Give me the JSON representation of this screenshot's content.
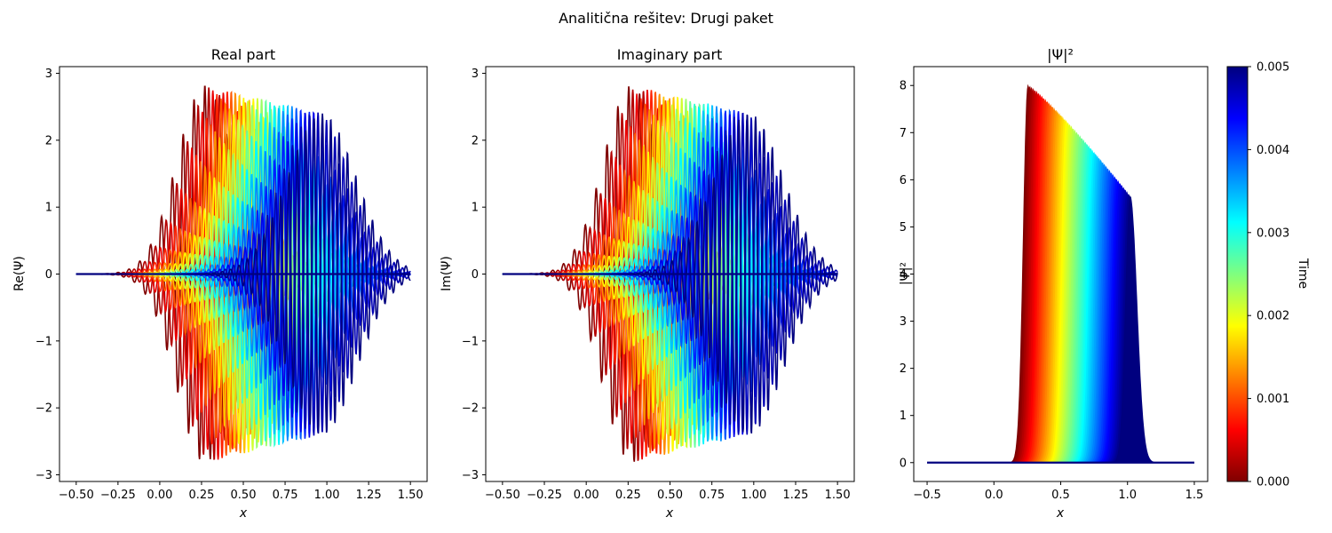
{
  "suptitle": "Analitična rešitev: Drugi paket",
  "colors": {
    "jet_stops": [
      "#00007f",
      "#0000ff",
      "#007fff",
      "#00ffff",
      "#7fff7f",
      "#ffff00",
      "#ff7f00",
      "#ff0000",
      "#7f0000"
    ],
    "axis": "#000000",
    "background": "#ffffff"
  },
  "chart_data": [
    {
      "type": "line",
      "title": "Real part",
      "xlabel": "x",
      "ylabel": "Re(Ψ)",
      "xlim": [
        -0.6,
        1.6
      ],
      "ylim": [
        -3.1,
        3.1
      ],
      "xticks": [
        "−0.50",
        "−0.25",
        "0.00",
        "0.25",
        "0.50",
        "0.75",
        "1.00",
        "1.25",
        "1.50"
      ],
      "yticks": [
        "−3",
        "−2",
        "−1",
        "0",
        "1",
        "2",
        "3"
      ],
      "x_range": [
        -0.5,
        1.5
      ],
      "series_count": 20,
      "packet_center_start": 0.27,
      "packet_center_end": 0.97,
      "amplitude_start": 2.82,
      "amplitude_end": 2.4,
      "color_by": "time",
      "grid": false
    },
    {
      "type": "line",
      "title": "Imaginary part",
      "xlabel": "x",
      "ylabel": "Im(Ψ)",
      "xlim": [
        -0.6,
        1.6
      ],
      "ylim": [
        -3.1,
        3.1
      ],
      "xticks": [
        "−0.50",
        "−0.25",
        "0.00",
        "0.25",
        "0.50",
        "0.75",
        "1.00",
        "1.25",
        "1.50"
      ],
      "yticks": [
        "−3",
        "−2",
        "−1",
        "0",
        "1",
        "2",
        "3"
      ],
      "x_range": [
        -0.5,
        1.5
      ],
      "series_count": 20,
      "packet_center_start": 0.27,
      "packet_center_end": 0.97,
      "amplitude_start": 2.82,
      "amplitude_end": 2.4,
      "color_by": "time",
      "grid": false
    },
    {
      "type": "area",
      "title": "|Ψ|²",
      "xlabel": "x",
      "ylabel": "|Ψ|²",
      "xlim": [
        -0.6,
        1.6
      ],
      "ylim": [
        -0.4,
        8.4
      ],
      "xticks": [
        "−0.5",
        "0.0",
        "0.5",
        "1.0",
        "1.5"
      ],
      "yticks": [
        "0",
        "1",
        "2",
        "3",
        "4",
        "5",
        "6",
        "7",
        "8"
      ],
      "x_range": [
        -0.5,
        1.5
      ],
      "series_count": 60,
      "peak_x_start": 0.255,
      "peak_x_end": 1.02,
      "peak_start": 8.0,
      "peak_end": 5.65,
      "color_by": "time",
      "grid": false
    }
  ],
  "colorbar": {
    "label": "Time",
    "ticks": [
      "0.000",
      "0.001",
      "0.002",
      "0.003",
      "0.004",
      "0.005"
    ],
    "range": [
      0.0,
      0.005
    ]
  }
}
